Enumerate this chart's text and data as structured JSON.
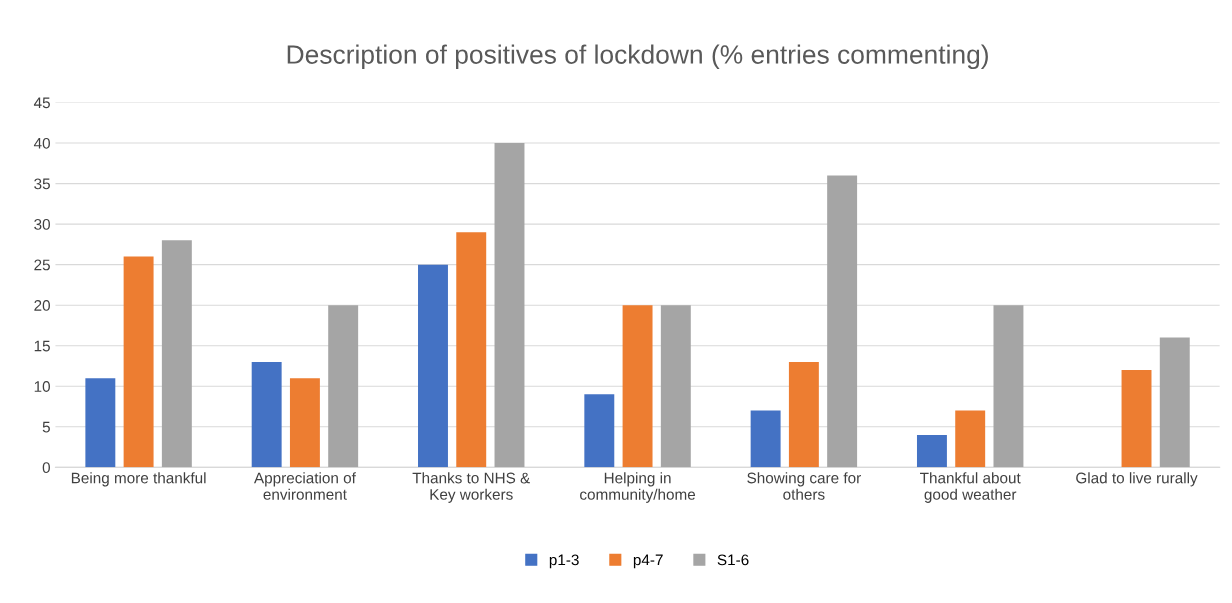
{
  "chart_data": {
    "type": "bar",
    "title": "Description of positives of lockdown (% entries commenting)",
    "categories": [
      "Being more thankful",
      "Appreciation of\nenvironment",
      "Thanks to NHS &\nKey workers",
      "Helping in\ncommunity/home",
      "Showing care for\nothers",
      "Thankful about\ngood weather",
      "Glad to live rurally"
    ],
    "series": [
      {
        "name": "p1-3",
        "color": "#4472c4",
        "values": [
          11,
          13,
          25,
          9,
          7,
          4,
          null
        ]
      },
      {
        "name": "p4-7",
        "color": "#ed7d31",
        "values": [
          26,
          11,
          29,
          20,
          13,
          7,
          12
        ]
      },
      {
        "name": "S1-6",
        "color": "#a5a5a5",
        "values": [
          28,
          20,
          40,
          20,
          36,
          20,
          16
        ]
      }
    ],
    "ylim": [
      0,
      45
    ],
    "yticks": [
      0,
      5,
      10,
      15,
      20,
      25,
      30,
      35,
      40,
      45
    ],
    "grid": "y",
    "legend": "bottom"
  }
}
